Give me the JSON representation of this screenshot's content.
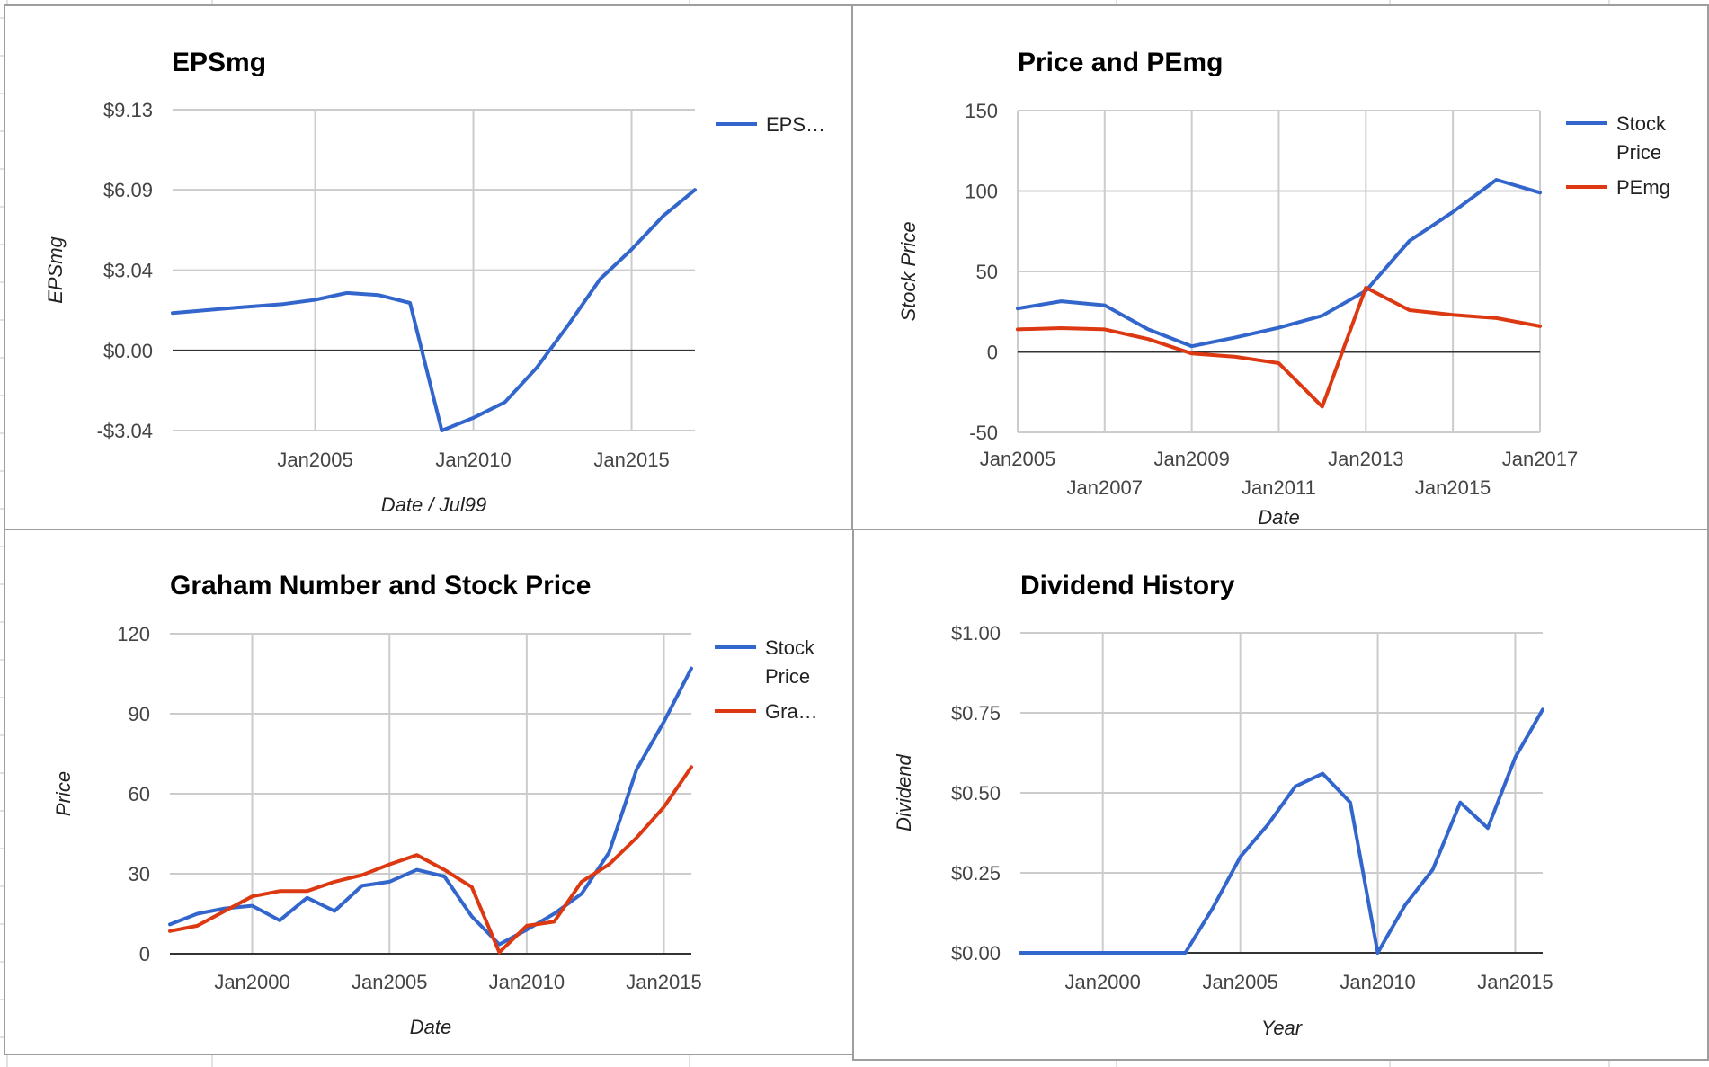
{
  "colors": {
    "blue": "#3366cc",
    "red": "#dc3912",
    "grid": "#cccccc",
    "sheet_grid": "#e2e2e2"
  },
  "panels": [
    {
      "id": "eps"
    },
    {
      "id": "pe"
    },
    {
      "id": "graham"
    },
    {
      "id": "div"
    }
  ],
  "chart_data": [
    {
      "type": "line",
      "title": "EPSmg",
      "xlabel": "Date / Jul99",
      "ylabel": "EPSmg",
      "xlim": [
        "2000-07-01",
        "2017-01-01"
      ],
      "ylim": [
        -3.04,
        9.13
      ],
      "yticks": [
        {
          "v": 9.13,
          "label": "$9.13"
        },
        {
          "v": 6.09,
          "label": "$6.09"
        },
        {
          "v": 3.04,
          "label": "$3.04"
        },
        {
          "v": 0,
          "label": "$0.00"
        },
        {
          "v": -3.04,
          "label": "-$3.04"
        }
      ],
      "xticks": [
        {
          "v": "2005-01-01",
          "label": "Jan2005"
        },
        {
          "v": "2010-01-01",
          "label": "Jan2010"
        },
        {
          "v": "2015-01-01",
          "label": "Jan2015"
        }
      ],
      "legend": {
        "position": "right",
        "entries": [
          {
            "lines": [
              "EPS…"
            ],
            "color": "blue"
          }
        ]
      },
      "series": [
        {
          "color": "blue",
          "points": [
            [
              "2000-07-01",
              1.42
            ],
            [
              "2002-07-01",
              1.62
            ],
            [
              "2004-01-01",
              1.76
            ],
            [
              "2005-01-01",
              1.92
            ],
            [
              "2006-01-01",
              2.18
            ],
            [
              "2007-01-01",
              2.1
            ],
            [
              "2008-01-01",
              1.8
            ],
            [
              "2009-01-01",
              -3.04
            ],
            [
              "2010-01-01",
              -2.56
            ],
            [
              "2011-01-01",
              -1.96
            ],
            [
              "2012-01-01",
              -0.66
            ],
            [
              "2013-01-01",
              0.97
            ],
            [
              "2014-01-01",
              2.7
            ],
            [
              "2015-01-01",
              3.83
            ],
            [
              "2016-01-01",
              5.1
            ],
            [
              "2017-01-01",
              6.09
            ]
          ]
        }
      ]
    },
    {
      "type": "line",
      "title": "Price and PEmg",
      "xlabel": "Date",
      "ylabel": "Stock Price",
      "xlim": [
        "2005-01-01",
        "2017-01-01"
      ],
      "ylim": [
        -50,
        150
      ],
      "yticks": [
        {
          "v": 150,
          "label": "150"
        },
        {
          "v": 100,
          "label": "100"
        },
        {
          "v": 50,
          "label": "50"
        },
        {
          "v": 0,
          "label": "0"
        },
        {
          "v": -50,
          "label": "-50"
        }
      ],
      "xticks": [
        {
          "v": "2005-01-01",
          "label": "Jan2005",
          "row": 0
        },
        {
          "v": "2007-01-01",
          "label": "Jan2007",
          "row": 1
        },
        {
          "v": "2009-01-01",
          "label": "Jan2009",
          "row": 0
        },
        {
          "v": "2011-01-01",
          "label": "Jan2011",
          "row": 1
        },
        {
          "v": "2013-01-01",
          "label": "Jan2013",
          "row": 0
        },
        {
          "v": "2015-01-01",
          "label": "Jan2015",
          "row": 1
        },
        {
          "v": "2017-01-01",
          "label": "Jan2017",
          "row": 0
        }
      ],
      "legend": {
        "position": "right",
        "entries": [
          {
            "lines": [
              "Stock",
              "Price"
            ],
            "color": "blue"
          },
          {
            "lines": [
              "PEmg"
            ],
            "color": "red"
          }
        ]
      },
      "series": [
        {
          "color": "blue",
          "points": [
            [
              "2005-01-01",
              27
            ],
            [
              "2006-01-01",
              31.5
            ],
            [
              "2007-01-01",
              29
            ],
            [
              "2008-01-01",
              14
            ],
            [
              "2009-01-01",
              3.5
            ],
            [
              "2010-01-01",
              9
            ],
            [
              "2011-01-01",
              15
            ],
            [
              "2012-01-01",
              22.5
            ],
            [
              "2013-01-01",
              38
            ],
            [
              "2014-01-01",
              69
            ],
            [
              "2015-01-01",
              87
            ],
            [
              "2016-01-01",
              107
            ],
            [
              "2017-01-01",
              99
            ]
          ]
        },
        {
          "color": "red",
          "points": [
            [
              "2005-01-01",
              14
            ],
            [
              "2006-01-01",
              14.8
            ],
            [
              "2007-01-01",
              14
            ],
            [
              "2008-01-01",
              8
            ],
            [
              "2009-01-01",
              -1
            ],
            [
              "2010-01-01",
              -3
            ],
            [
              "2011-01-01",
              -7
            ],
            [
              "2012-01-01",
              -34
            ],
            [
              "2013-01-01",
              40
            ],
            [
              "2014-01-01",
              26
            ],
            [
              "2015-01-01",
              23
            ],
            [
              "2016-01-01",
              21
            ],
            [
              "2017-01-01",
              16
            ]
          ]
        }
      ]
    },
    {
      "type": "line",
      "title": "Graham Number and Stock Price",
      "xlabel": "Date",
      "ylabel": "Price",
      "xlim": [
        "1997-01-01",
        "2016-01-01"
      ],
      "ylim": [
        0,
        120
      ],
      "yticks": [
        {
          "v": 120,
          "label": "120"
        },
        {
          "v": 90,
          "label": "90"
        },
        {
          "v": 60,
          "label": "60"
        },
        {
          "v": 30,
          "label": "30"
        },
        {
          "v": 0,
          "label": "0"
        }
      ],
      "xticks": [
        {
          "v": "2000-01-01",
          "label": "Jan2000"
        },
        {
          "v": "2005-01-01",
          "label": "Jan2005"
        },
        {
          "v": "2010-01-01",
          "label": "Jan2010"
        },
        {
          "v": "2015-01-01",
          "label": "Jan2015"
        }
      ],
      "legend": {
        "position": "right",
        "entries": [
          {
            "lines": [
              "Stock",
              "Price"
            ],
            "color": "blue"
          },
          {
            "lines": [
              "Gra…"
            ],
            "color": "red"
          }
        ]
      },
      "series": [
        {
          "color": "blue",
          "points": [
            [
              "1997-01-01",
              11
            ],
            [
              "1998-01-01",
              15
            ],
            [
              "1999-01-01",
              17
            ],
            [
              "2000-01-01",
              18
            ],
            [
              "2001-01-01",
              12.5
            ],
            [
              "2002-01-01",
              21
            ],
            [
              "2003-01-01",
              16
            ],
            [
              "2004-01-01",
              25.5
            ],
            [
              "2005-01-01",
              27
            ],
            [
              "2006-01-01",
              31.5
            ],
            [
              "2007-01-01",
              29
            ],
            [
              "2008-01-01",
              14
            ],
            [
              "2009-01-01",
              3.5
            ],
            [
              "2010-01-01",
              9
            ],
            [
              "2011-01-01",
              15
            ],
            [
              "2012-01-01",
              22.5
            ],
            [
              "2013-01-01",
              38
            ],
            [
              "2014-01-01",
              69
            ],
            [
              "2015-01-01",
              87
            ],
            [
              "2016-01-01",
              107
            ]
          ]
        },
        {
          "color": "red",
          "points": [
            [
              "1997-01-01",
              8.5
            ],
            [
              "1998-01-01",
              10.5
            ],
            [
              "1999-01-01",
              16
            ],
            [
              "2000-01-01",
              21.5
            ],
            [
              "2001-01-01",
              23.5
            ],
            [
              "2002-01-01",
              23.5
            ],
            [
              "2003-01-01",
              27
            ],
            [
              "2004-01-01",
              29.5
            ],
            [
              "2005-01-01",
              33.5
            ],
            [
              "2006-01-01",
              37
            ],
            [
              "2007-01-01",
              31.5
            ],
            [
              "2008-01-01",
              25
            ],
            [
              "2009-01-01",
              0.5
            ],
            [
              "2010-01-01",
              10.5
            ],
            [
              "2011-01-01",
              12
            ],
            [
              "2012-01-01",
              27
            ],
            [
              "2013-01-01",
              33.5
            ],
            [
              "2014-01-01",
              43.5
            ],
            [
              "2015-01-01",
              55
            ],
            [
              "2016-01-01",
              70
            ]
          ]
        }
      ]
    },
    {
      "type": "line",
      "title": "Dividend History",
      "xlabel": "Year",
      "ylabel": "Dividend",
      "xlim": [
        "1997-01-01",
        "2016-01-01"
      ],
      "ylim": [
        0,
        1.0
      ],
      "yticks": [
        {
          "v": 1.0,
          "label": "$1.00"
        },
        {
          "v": 0.75,
          "label": "$0.75"
        },
        {
          "v": 0.5,
          "label": "$0.50"
        },
        {
          "v": 0.25,
          "label": "$0.25"
        },
        {
          "v": 0,
          "label": "$0.00"
        }
      ],
      "xticks": [
        {
          "v": "2000-01-01",
          "label": "Jan2000"
        },
        {
          "v": "2005-01-01",
          "label": "Jan2005"
        },
        {
          "v": "2010-01-01",
          "label": "Jan2010"
        },
        {
          "v": "2015-01-01",
          "label": "Jan2015"
        }
      ],
      "legend": {
        "position": "none",
        "entries": []
      },
      "series": [
        {
          "color": "blue",
          "points": [
            [
              "1997-01-01",
              0
            ],
            [
              "1998-01-01",
              0
            ],
            [
              "1999-01-01",
              0
            ],
            [
              "2000-01-01",
              0
            ],
            [
              "2001-01-01",
              0
            ],
            [
              "2002-01-01",
              0
            ],
            [
              "2003-01-01",
              0
            ],
            [
              "2004-01-01",
              0.14
            ],
            [
              "2005-01-01",
              0.3
            ],
            [
              "2006-01-01",
              0.4
            ],
            [
              "2007-01-01",
              0.52
            ],
            [
              "2008-01-01",
              0.56
            ],
            [
              "2009-01-01",
              0.47
            ],
            [
              "2010-01-01",
              0.0
            ],
            [
              "2011-01-01",
              0.15
            ],
            [
              "2012-01-01",
              0.26
            ],
            [
              "2013-01-01",
              0.47
            ],
            [
              "2014-01-01",
              0.39
            ],
            [
              "2015-01-01",
              0.61
            ],
            [
              "2016-01-01",
              0.76
            ]
          ]
        }
      ]
    }
  ]
}
